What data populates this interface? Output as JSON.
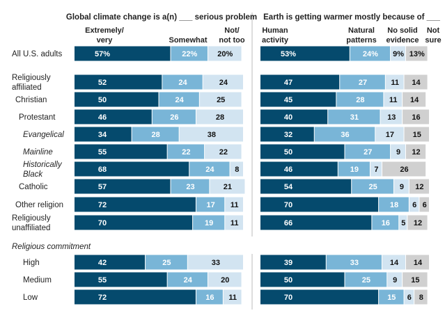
{
  "chart_data": [
    {
      "type": "bar",
      "stacked": true,
      "orientation": "horizontal",
      "title": "Global climate change is a(n) ___ serious problem",
      "series": [
        {
          "name": "Extremely/ very",
          "lines": [
            "Extremely/",
            "very"
          ],
          "color": "#054a6d",
          "text_color": "#ffffff",
          "values": [
            57,
            52,
            50,
            46,
            34,
            55,
            68,
            57,
            72,
            70,
            42,
            55,
            72
          ]
        },
        {
          "name": "Somewhat",
          "lines": [
            "",
            "Somewhat"
          ],
          "color": "#79b5d7",
          "text_color": "#ffffff",
          "values": [
            22,
            24,
            24,
            26,
            28,
            22,
            24,
            23,
            17,
            19,
            25,
            24,
            16
          ]
        },
        {
          "name": "Not/ not too",
          "lines": [
            "Not/",
            "not too"
          ],
          "color": "#d2e4f1",
          "text_color": "#111111",
          "values": [
            20,
            24,
            25,
            28,
            38,
            22,
            8,
            21,
            11,
            11,
            33,
            20,
            11
          ]
        }
      ],
      "xlim": [
        0,
        100
      ]
    },
    {
      "type": "bar",
      "stacked": true,
      "orientation": "horizontal",
      "title": "Earth is getting warmer mostly because of ___",
      "series": [
        {
          "name": "Human activity",
          "lines": [
            "Human",
            "activity"
          ],
          "color": "#054a6d",
          "text_color": "#ffffff",
          "values": [
            53,
            47,
            45,
            40,
            32,
            50,
            46,
            54,
            70,
            66,
            39,
            50,
            70
          ]
        },
        {
          "name": "Natural patterns",
          "lines": [
            "Natural",
            "patterns"
          ],
          "color": "#79b5d7",
          "text_color": "#ffffff",
          "values": [
            24,
            27,
            28,
            31,
            36,
            27,
            19,
            25,
            18,
            16,
            33,
            25,
            15
          ]
        },
        {
          "name": "No solid evidence",
          "lines": [
            "No solid",
            "evidence"
          ],
          "color": "#d2e4f1",
          "text_color": "#111111",
          "values": [
            9,
            11,
            11,
            13,
            17,
            9,
            7,
            9,
            6,
            5,
            14,
            9,
            6
          ]
        },
        {
          "name": "Not sure",
          "lines": [
            "Not",
            "sure"
          ],
          "color": "#d0d0d0",
          "text_color": "#111111",
          "values": [
            13,
            14,
            14,
            16,
            15,
            12,
            26,
            12,
            6,
            12,
            14,
            15,
            8
          ]
        }
      ],
      "xlim": [
        0,
        100
      ]
    }
  ],
  "categories": [
    {
      "lines": [
        "All U.S. adults"
      ],
      "italic": false,
      "indent": 0,
      "pct": true
    },
    {
      "lines": [
        "Religiously",
        "affiliated"
      ],
      "italic": false,
      "indent": 0
    },
    {
      "lines": [
        "Christian"
      ],
      "italic": false,
      "indent": 1
    },
    {
      "lines": [
        "Protestant"
      ],
      "italic": false,
      "indent": 2
    },
    {
      "lines": [
        "Evangelical"
      ],
      "italic": true,
      "indent": 3
    },
    {
      "lines": [
        "Mainline"
      ],
      "italic": true,
      "indent": 3
    },
    {
      "lines": [
        "Historically",
        "Black"
      ],
      "italic": true,
      "indent": 3
    },
    {
      "lines": [
        "Catholic"
      ],
      "italic": false,
      "indent": 2
    },
    {
      "lines": [
        "Other religion"
      ],
      "italic": false,
      "indent": 1
    },
    {
      "lines": [
        "Religiously",
        "unaffiliated"
      ],
      "italic": false,
      "indent": 0
    },
    {
      "lines": [
        "High"
      ],
      "italic": false,
      "indent": 3
    },
    {
      "lines": [
        "Medium"
      ],
      "italic": false,
      "indent": 3
    },
    {
      "lines": [
        "Low"
      ],
      "italic": false,
      "indent": 3
    }
  ],
  "section_label": "Religious commitment"
}
